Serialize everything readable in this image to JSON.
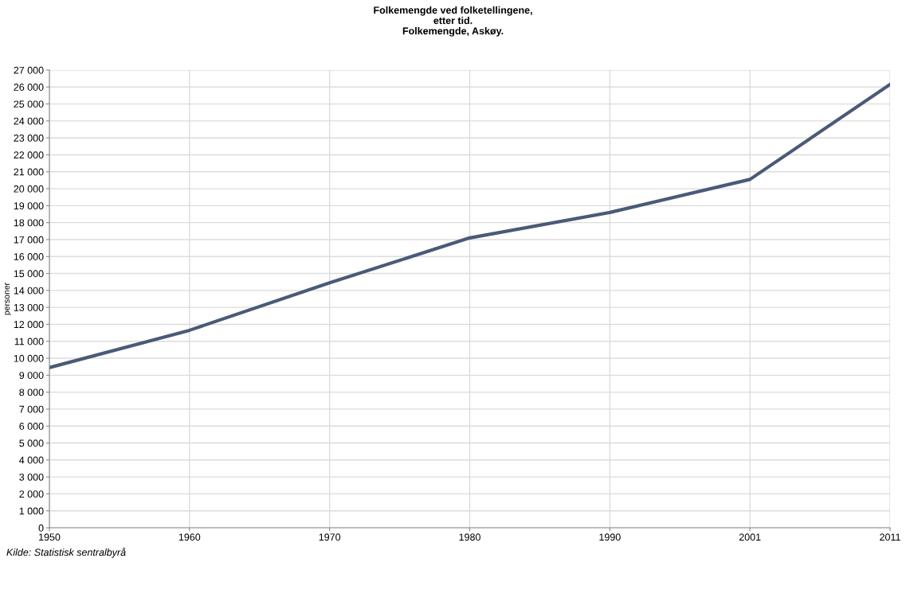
{
  "chart_data": {
    "type": "line",
    "title": "Folkemengde ved folketellingene,\netter tid.\nFolkemengde, Askøy.",
    "ylabel": "personer",
    "categories": [
      "1950",
      "1960",
      "1970",
      "1980",
      "1990",
      "2001",
      "2011"
    ],
    "series": [
      {
        "color": "#4a5a78",
        "values": [
          9450,
          11650,
          14450,
          17100,
          18600,
          20550,
          26150
        ]
      }
    ],
    "ylim": [
      0,
      27000
    ],
    "yticks": [
      0,
      {
        "value": 1000,
        "label": "1 000"
      },
      {
        "value": 2000,
        "label": "2 000"
      },
      {
        "value": 3000,
        "label": "3 000"
      },
      {
        "value": 4000,
        "label": "4 000"
      },
      {
        "value": 5000,
        "label": "5 000"
      },
      {
        "value": 6000,
        "label": "6 000"
      },
      {
        "value": 7000,
        "label": "7 000"
      },
      {
        "value": 8000,
        "label": "8 000"
      },
      {
        "value": 9000,
        "label": "9 000"
      },
      {
        "value": 10000,
        "label": "10 000"
      },
      {
        "value": 11000,
        "label": "11 000"
      },
      {
        "value": 12000,
        "label": "12 000"
      },
      {
        "value": 13000,
        "label": "13 000"
      },
      {
        "value": 14000,
        "label": "14 000"
      },
      {
        "value": 15000,
        "label": "15 000"
      },
      {
        "value": 16000,
        "label": "16 000"
      },
      {
        "value": 17000,
        "label": "17 000"
      },
      {
        "value": 18000,
        "label": "18 000"
      },
      {
        "value": 19000,
        "label": "19 000"
      },
      {
        "value": 20000,
        "label": "20 000"
      },
      {
        "value": 21000,
        "label": "21 000"
      },
      {
        "value": 22000,
        "label": "22 000"
      },
      {
        "value": 23000,
        "label": "23 000"
      },
      {
        "value": 24000,
        "label": "24 000"
      },
      {
        "value": 25000,
        "label": "25 000"
      },
      {
        "value": 26000,
        "label": "26 000"
      },
      {
        "value": 27000,
        "label": "27 000"
      }
    ],
    "grid": true,
    "marker": "none",
    "line_style": "solid",
    "annotations": [
      "Kilde: Statistisk sentralbyrå"
    ]
  }
}
